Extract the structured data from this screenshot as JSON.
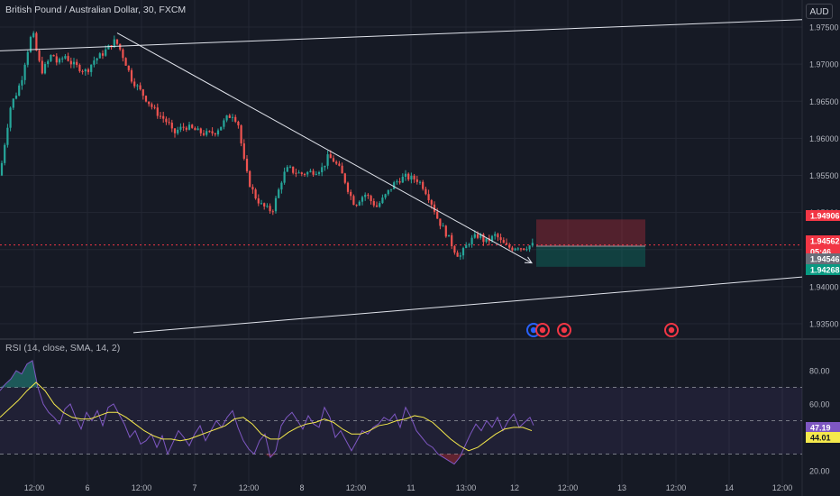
{
  "header": {
    "symbol": "British Pound / Australian Dollar, 30, FXCM",
    "currency_button": "AUD"
  },
  "rsi_header": {
    "label": "RSI (14, close, SMA, 14, 2)"
  },
  "colors": {
    "up": "#26a69a",
    "down": "#ef5350",
    "rsi": "#7e57c2",
    "rsi_ma": "#f5e94c",
    "background": "#161a25",
    "grid": "#232733",
    "axis_text": "#b2b5be",
    "trendline": "#e0e3eb"
  },
  "chart_data": [
    {
      "type": "candlestick",
      "title": "British Pound / Australian Dollar, 30, FXCM",
      "y_axis_ticks": [
        "1.97500",
        "1.97000",
        "1.96500",
        "1.96000",
        "1.95500",
        "1.95000",
        "1.94500",
        "1.94000",
        "1.93500"
      ],
      "x_axis_ticks": [
        "12:00",
        "6",
        "12:00",
        "7",
        "12:00",
        "8",
        "12:00",
        "11",
        "13:00",
        "12",
        "12:00",
        "13",
        "12:00",
        "14",
        "12:00"
      ],
      "ylim": [
        1.933,
        1.976
      ],
      "price_labels": [
        {
          "value": "1.94906",
          "color": "#f23645"
        },
        {
          "value": "1.94562",
          "color": "#f23645"
        },
        {
          "value": "05:46",
          "color": "#f23645"
        },
        {
          "value": "1.94546",
          "color": "#6a6d78"
        },
        {
          "value": "1.94268",
          "color": "#089981"
        }
      ],
      "price_path": [
        [
          0,
          1.955
        ],
        [
          6,
          1.96
        ],
        [
          12,
          1.9645
        ],
        [
          18,
          1.966
        ],
        [
          24,
          1.968
        ],
        [
          28,
          1.9705
        ],
        [
          32,
          1.9725
        ],
        [
          36,
          1.9745
        ],
        [
          40,
          1.972
        ],
        [
          46,
          1.969
        ],
        [
          52,
          1.97
        ],
        [
          58,
          1.9715
        ],
        [
          64,
          1.97
        ],
        [
          72,
          1.9712
        ],
        [
          80,
          1.97
        ],
        [
          88,
          1.9695
        ],
        [
          96,
          1.969
        ],
        [
          104,
          1.9705
        ],
        [
          112,
          1.9712
        ],
        [
          120,
          1.9722
        ],
        [
          128,
          1.9732
        ],
        [
          134,
          1.9718
        ],
        [
          140,
          1.97
        ],
        [
          146,
          1.968
        ],
        [
          152,
          1.967
        ],
        [
          158,
          1.966
        ],
        [
          164,
          1.965
        ],
        [
          170,
          1.964
        ],
        [
          176,
          1.9632
        ],
        [
          182,
          1.9626
        ],
        [
          188,
          1.9618
        ],
        [
          192,
          1.9605
        ],
        [
          198,
          1.9612
        ],
        [
          206,
          1.9616
        ],
        [
          214,
          1.9612
        ],
        [
          222,
          1.9608
        ],
        [
          230,
          1.9606
        ],
        [
          238,
          1.9608
        ],
        [
          246,
          1.9618
        ],
        [
          252,
          1.9628
        ],
        [
          258,
          1.9632
        ],
        [
          264,
          1.9622
        ],
        [
          268,
          1.959
        ],
        [
          272,
          1.956
        ],
        [
          278,
          1.9535
        ],
        [
          284,
          1.952
        ],
        [
          290,
          1.951
        ],
        [
          296,
          1.9505
        ],
        [
          302,
          1.9502
        ],
        [
          308,
          1.9525
        ],
        [
          314,
          1.955
        ],
        [
          320,
          1.956
        ],
        [
          326,
          1.9555
        ],
        [
          334,
          1.9552
        ],
        [
          342,
          1.9554
        ],
        [
          350,
          1.9556
        ],
        [
          358,
          1.956
        ],
        [
          364,
          1.9575
        ],
        [
          370,
          1.957
        ],
        [
          376,
          1.956
        ],
        [
          382,
          1.9545
        ],
        [
          388,
          1.9525
        ],
        [
          394,
          1.951
        ],
        [
          400,
          1.952
        ],
        [
          406,
          1.9525
        ],
        [
          412,
          1.9515
        ],
        [
          418,
          1.9508
        ],
        [
          426,
          1.952
        ],
        [
          432,
          1.953
        ],
        [
          438,
          1.954
        ],
        [
          444,
          1.9545
        ],
        [
          450,
          1.9548
        ],
        [
          456,
          1.9546
        ],
        [
          462,
          1.9545
        ],
        [
          468,
          1.9538
        ],
        [
          474,
          1.9525
        ],
        [
          480,
          1.951
        ],
        [
          486,
          1.949
        ],
        [
          492,
          1.9478
        ],
        [
          498,
          1.9465
        ],
        [
          504,
          1.945
        ],
        [
          510,
          1.944
        ],
        [
          514,
          1.9448
        ],
        [
          520,
          1.946
        ],
        [
          526,
          1.9466
        ],
        [
          532,
          1.947
        ],
        [
          538,
          1.946
        ],
        [
          544,
          1.9464
        ],
        [
          550,
          1.947
        ],
        [
          556,
          1.946
        ],
        [
          562,
          1.9454
        ],
        [
          568,
          1.9452
        ],
        [
          574,
          1.9455
        ],
        [
          580,
          1.9452
        ],
        [
          586,
          1.9455
        ],
        [
          592,
          1.94562
        ]
      ],
      "drawings": [
        {
          "kind": "trend_line",
          "from": [
            0,
            1.9718
          ],
          "to": [
            890,
            1.976
          ]
        },
        {
          "kind": "trend_line",
          "from": [
            130,
            1.9742
          ],
          "to": [
            590,
            1.9432
          ],
          "arrow": true
        },
        {
          "kind": "trend_line",
          "from": [
            148,
            1.9338
          ],
          "to": [
            890,
            1.9413
          ]
        },
        {
          "kind": "short_position",
          "x_from": 595,
          "x_to": 716,
          "entry": 1.94546,
          "stop": 1.94906,
          "target": 1.94268
        }
      ]
    },
    {
      "type": "line",
      "title": "RSI (14, close, SMA, 14, 2)",
      "y_axis_ticks": [
        "80.00",
        "60.00",
        "20.00"
      ],
      "ylim": [
        16,
        92
      ],
      "bands": {
        "upper": 70,
        "middle": 50,
        "lower": 30
      },
      "value_labels": [
        {
          "value": "47.19",
          "color": "#7e57c2"
        },
        {
          "value": "44.01",
          "color": "#f5e94c"
        }
      ],
      "series": [
        {
          "x": [
            0,
            6,
            12,
            18,
            24,
            30,
            36,
            42,
            48,
            54,
            60,
            66,
            72,
            78,
            84,
            90,
            96,
            102,
            108,
            114,
            120,
            126,
            132,
            138,
            144,
            150,
            156,
            162,
            168,
            174,
            180,
            186,
            192,
            198,
            204,
            210,
            216,
            222,
            228,
            234,
            240,
            246,
            252,
            258,
            264,
            270,
            276,
            282,
            288,
            294,
            300,
            306,
            312,
            318,
            324,
            330,
            336,
            342,
            348,
            354,
            360,
            366,
            372,
            378,
            384,
            390,
            396,
            402,
            408,
            414,
            420,
            426,
            432,
            438,
            444,
            450,
            456,
            462,
            468,
            474,
            480,
            486,
            492,
            498,
            504,
            510,
            516,
            522,
            528,
            534,
            540,
            546,
            552,
            558,
            564,
            570,
            576,
            582,
            588,
            592
          ],
          "values": [
            68,
            72,
            75,
            80,
            78,
            84,
            86,
            70,
            60,
            55,
            52,
            48,
            57,
            60,
            52,
            45,
            55,
            50,
            56,
            47,
            58,
            60,
            54,
            48,
            40,
            44,
            36,
            38,
            42,
            34,
            41,
            30,
            37,
            44,
            40,
            35,
            42,
            47,
            38,
            44,
            50,
            46,
            52,
            56,
            46,
            38,
            33,
            30,
            38,
            42,
            28,
            32,
            47,
            52,
            55,
            50,
            45,
            53,
            48,
            46,
            58,
            52,
            40,
            44,
            38,
            32,
            38,
            44,
            42,
            46,
            48,
            52,
            50,
            54,
            46,
            58,
            52,
            44,
            40,
            36,
            34,
            30,
            28,
            26,
            24,
            28,
            35,
            42,
            48,
            44,
            50,
            46,
            52,
            44,
            50,
            54,
            46,
            49,
            52,
            47.19
          ]
        },
        {
          "x": [
            0,
            10,
            20,
            30,
            40,
            50,
            60,
            70,
            80,
            90,
            100,
            110,
            120,
            130,
            140,
            150,
            160,
            170,
            180,
            190,
            200,
            210,
            220,
            230,
            240,
            250,
            260,
            270,
            280,
            290,
            300,
            310,
            320,
            330,
            340,
            350,
            360,
            370,
            380,
            390,
            400,
            410,
            420,
            430,
            440,
            450,
            460,
            470,
            480,
            490,
            500,
            510,
            520,
            530,
            540,
            550,
            560,
            570,
            580,
            590
          ],
          "values": [
            52,
            57,
            62,
            68,
            73,
            68,
            60,
            55,
            52,
            51,
            51,
            53,
            55,
            55,
            52,
            48,
            44,
            41,
            39,
            39,
            38,
            39,
            41,
            43,
            45,
            47,
            51,
            52,
            48,
            42,
            39,
            39,
            43,
            46,
            48,
            49,
            51,
            49,
            45,
            42,
            42,
            44,
            47,
            48,
            50,
            51,
            53,
            52,
            49,
            44,
            39,
            35,
            32,
            34,
            38,
            42,
            45,
            46,
            46,
            44.01
          ]
        }
      ]
    }
  ]
}
